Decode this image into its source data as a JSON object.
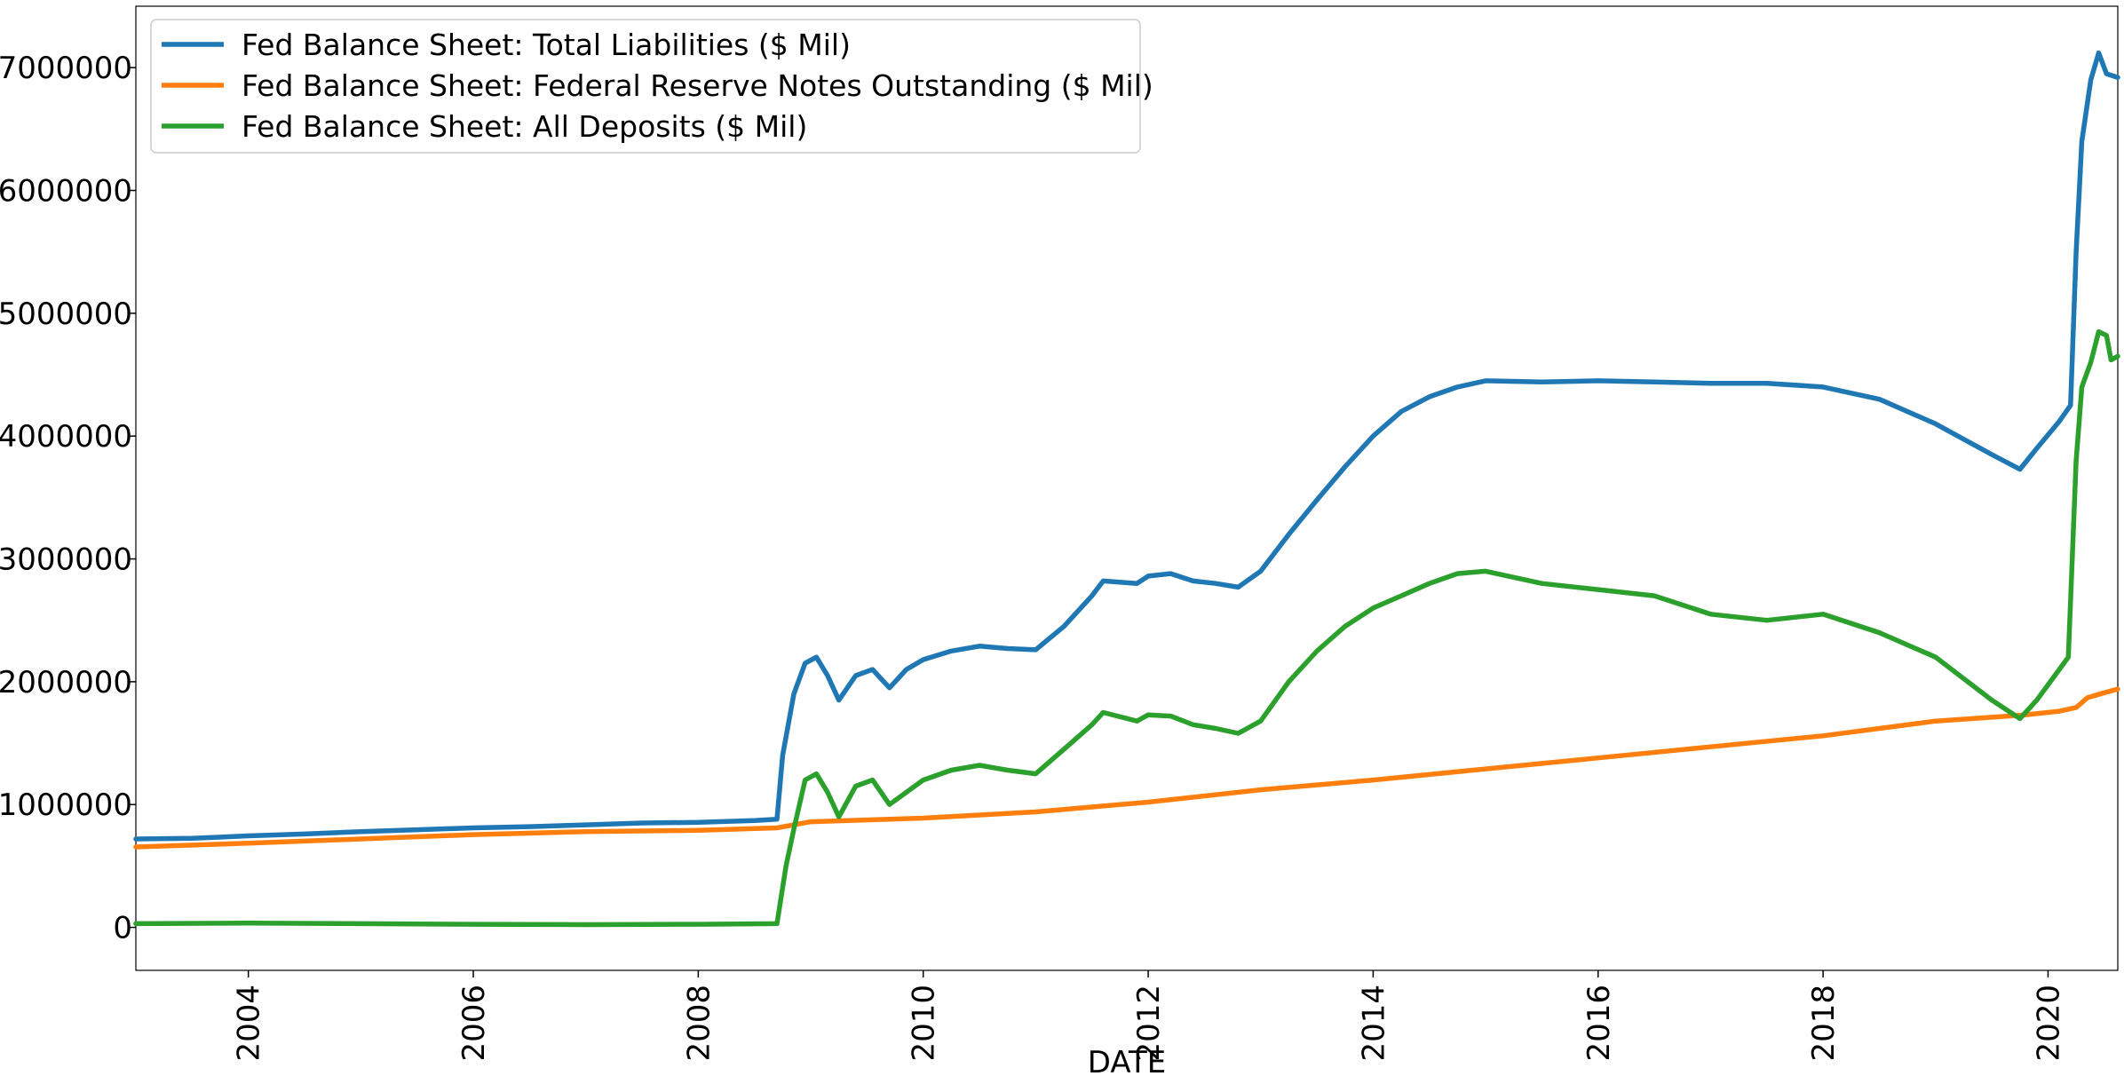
{
  "chart_data": {
    "type": "line",
    "title": "",
    "xlabel": "DATE",
    "ylabel": "",
    "xlim": [
      2003.0,
      2020.62
    ],
    "ylim": [
      -350000,
      7500000
    ],
    "x_ticks": [
      2004,
      2006,
      2008,
      2010,
      2012,
      2014,
      2016,
      2018,
      2020
    ],
    "x_tick_labels": [
      "2004",
      "2006",
      "2008",
      "2010",
      "2012",
      "2014",
      "2016",
      "2018",
      "2020"
    ],
    "y_ticks": [
      0,
      1000000,
      2000000,
      3000000,
      4000000,
      5000000,
      6000000,
      7000000
    ],
    "y_tick_labels": [
      "0",
      "1000000",
      "2000000",
      "3000000",
      "4000000",
      "5000000",
      "6000000",
      "7000000"
    ],
    "grid": false,
    "legend_position": "top-left",
    "series": [
      {
        "name": "Fed Balance Sheet: Total Liabilities ($ Mil)",
        "color": "#1f77b4",
        "points": [
          [
            2003.0,
            720000
          ],
          [
            2003.5,
            725000
          ],
          [
            2004.0,
            745000
          ],
          [
            2004.5,
            760000
          ],
          [
            2005.0,
            780000
          ],
          [
            2005.5,
            795000
          ],
          [
            2006.0,
            810000
          ],
          [
            2006.5,
            820000
          ],
          [
            2007.0,
            835000
          ],
          [
            2007.5,
            850000
          ],
          [
            2008.0,
            855000
          ],
          [
            2008.5,
            870000
          ],
          [
            2008.7,
            880000
          ],
          [
            2008.75,
            1400000
          ],
          [
            2008.85,
            1900000
          ],
          [
            2008.95,
            2150000
          ],
          [
            2009.05,
            2200000
          ],
          [
            2009.15,
            2050000
          ],
          [
            2009.25,
            1850000
          ],
          [
            2009.4,
            2050000
          ],
          [
            2009.55,
            2100000
          ],
          [
            2009.7,
            1950000
          ],
          [
            2009.85,
            2100000
          ],
          [
            2010.0,
            2180000
          ],
          [
            2010.25,
            2250000
          ],
          [
            2010.5,
            2290000
          ],
          [
            2010.75,
            2270000
          ],
          [
            2011.0,
            2260000
          ],
          [
            2011.25,
            2450000
          ],
          [
            2011.5,
            2700000
          ],
          [
            2011.6,
            2820000
          ],
          [
            2011.9,
            2800000
          ],
          [
            2012.0,
            2860000
          ],
          [
            2012.2,
            2880000
          ],
          [
            2012.4,
            2820000
          ],
          [
            2012.6,
            2800000
          ],
          [
            2012.8,
            2770000
          ],
          [
            2013.0,
            2900000
          ],
          [
            2013.25,
            3200000
          ],
          [
            2013.5,
            3480000
          ],
          [
            2013.75,
            3750000
          ],
          [
            2014.0,
            4000000
          ],
          [
            2014.25,
            4200000
          ],
          [
            2014.5,
            4320000
          ],
          [
            2014.75,
            4400000
          ],
          [
            2015.0,
            4450000
          ],
          [
            2015.5,
            4440000
          ],
          [
            2016.0,
            4450000
          ],
          [
            2016.5,
            4440000
          ],
          [
            2017.0,
            4430000
          ],
          [
            2017.5,
            4430000
          ],
          [
            2018.0,
            4400000
          ],
          [
            2018.5,
            4300000
          ],
          [
            2019.0,
            4100000
          ],
          [
            2019.5,
            3850000
          ],
          [
            2019.75,
            3730000
          ],
          [
            2019.9,
            3900000
          ],
          [
            2020.1,
            4120000
          ],
          [
            2020.2,
            4250000
          ],
          [
            2020.25,
            5500000
          ],
          [
            2020.3,
            6400000
          ],
          [
            2020.38,
            6900000
          ],
          [
            2020.45,
            7120000
          ],
          [
            2020.52,
            6950000
          ],
          [
            2020.62,
            6920000
          ]
        ]
      },
      {
        "name": "Fed Balance Sheet: Federal Reserve Notes Outstanding ($ Mil)",
        "color": "#ff7f0e",
        "points": [
          [
            2003.0,
            655000
          ],
          [
            2004.0,
            685000
          ],
          [
            2005.0,
            720000
          ],
          [
            2006.0,
            755000
          ],
          [
            2007.0,
            780000
          ],
          [
            2008.0,
            790000
          ],
          [
            2008.7,
            810000
          ],
          [
            2009.0,
            860000
          ],
          [
            2010.0,
            890000
          ],
          [
            2011.0,
            940000
          ],
          [
            2012.0,
            1020000
          ],
          [
            2013.0,
            1120000
          ],
          [
            2014.0,
            1200000
          ],
          [
            2015.0,
            1290000
          ],
          [
            2016.0,
            1380000
          ],
          [
            2017.0,
            1470000
          ],
          [
            2018.0,
            1560000
          ],
          [
            2019.0,
            1680000
          ],
          [
            2019.8,
            1730000
          ],
          [
            2020.1,
            1760000
          ],
          [
            2020.25,
            1790000
          ],
          [
            2020.35,
            1870000
          ],
          [
            2020.5,
            1910000
          ],
          [
            2020.62,
            1940000
          ]
        ]
      },
      {
        "name": "Fed Balance Sheet: All Deposits ($ Mil)",
        "color": "#2ca02c",
        "points": [
          [
            2003.0,
            30000
          ],
          [
            2004.0,
            35000
          ],
          [
            2005.0,
            30000
          ],
          [
            2006.0,
            25000
          ],
          [
            2007.0,
            22000
          ],
          [
            2008.0,
            25000
          ],
          [
            2008.7,
            30000
          ],
          [
            2008.78,
            500000
          ],
          [
            2008.85,
            800000
          ],
          [
            2008.95,
            1200000
          ],
          [
            2009.05,
            1250000
          ],
          [
            2009.15,
            1100000
          ],
          [
            2009.25,
            900000
          ],
          [
            2009.4,
            1150000
          ],
          [
            2009.55,
            1200000
          ],
          [
            2009.7,
            1000000
          ],
          [
            2010.0,
            1200000
          ],
          [
            2010.25,
            1280000
          ],
          [
            2010.5,
            1320000
          ],
          [
            2010.75,
            1280000
          ],
          [
            2011.0,
            1250000
          ],
          [
            2011.25,
            1450000
          ],
          [
            2011.5,
            1650000
          ],
          [
            2011.6,
            1750000
          ],
          [
            2011.9,
            1680000
          ],
          [
            2012.0,
            1730000
          ],
          [
            2012.2,
            1720000
          ],
          [
            2012.4,
            1650000
          ],
          [
            2012.6,
            1620000
          ],
          [
            2012.8,
            1580000
          ],
          [
            2013.0,
            1680000
          ],
          [
            2013.25,
            2000000
          ],
          [
            2013.5,
            2250000
          ],
          [
            2013.75,
            2450000
          ],
          [
            2014.0,
            2600000
          ],
          [
            2014.25,
            2700000
          ],
          [
            2014.5,
            2800000
          ],
          [
            2014.75,
            2880000
          ],
          [
            2015.0,
            2900000
          ],
          [
            2015.5,
            2800000
          ],
          [
            2016.0,
            2750000
          ],
          [
            2016.5,
            2700000
          ],
          [
            2017.0,
            2550000
          ],
          [
            2017.5,
            2500000
          ],
          [
            2018.0,
            2550000
          ],
          [
            2018.5,
            2400000
          ],
          [
            2019.0,
            2200000
          ],
          [
            2019.5,
            1850000
          ],
          [
            2019.75,
            1700000
          ],
          [
            2019.9,
            1850000
          ],
          [
            2020.1,
            2100000
          ],
          [
            2020.18,
            2200000
          ],
          [
            2020.25,
            3800000
          ],
          [
            2020.3,
            4400000
          ],
          [
            2020.38,
            4600000
          ],
          [
            2020.45,
            4850000
          ],
          [
            2020.52,
            4820000
          ],
          [
            2020.56,
            4620000
          ],
          [
            2020.62,
            4650000
          ]
        ]
      }
    ]
  }
}
